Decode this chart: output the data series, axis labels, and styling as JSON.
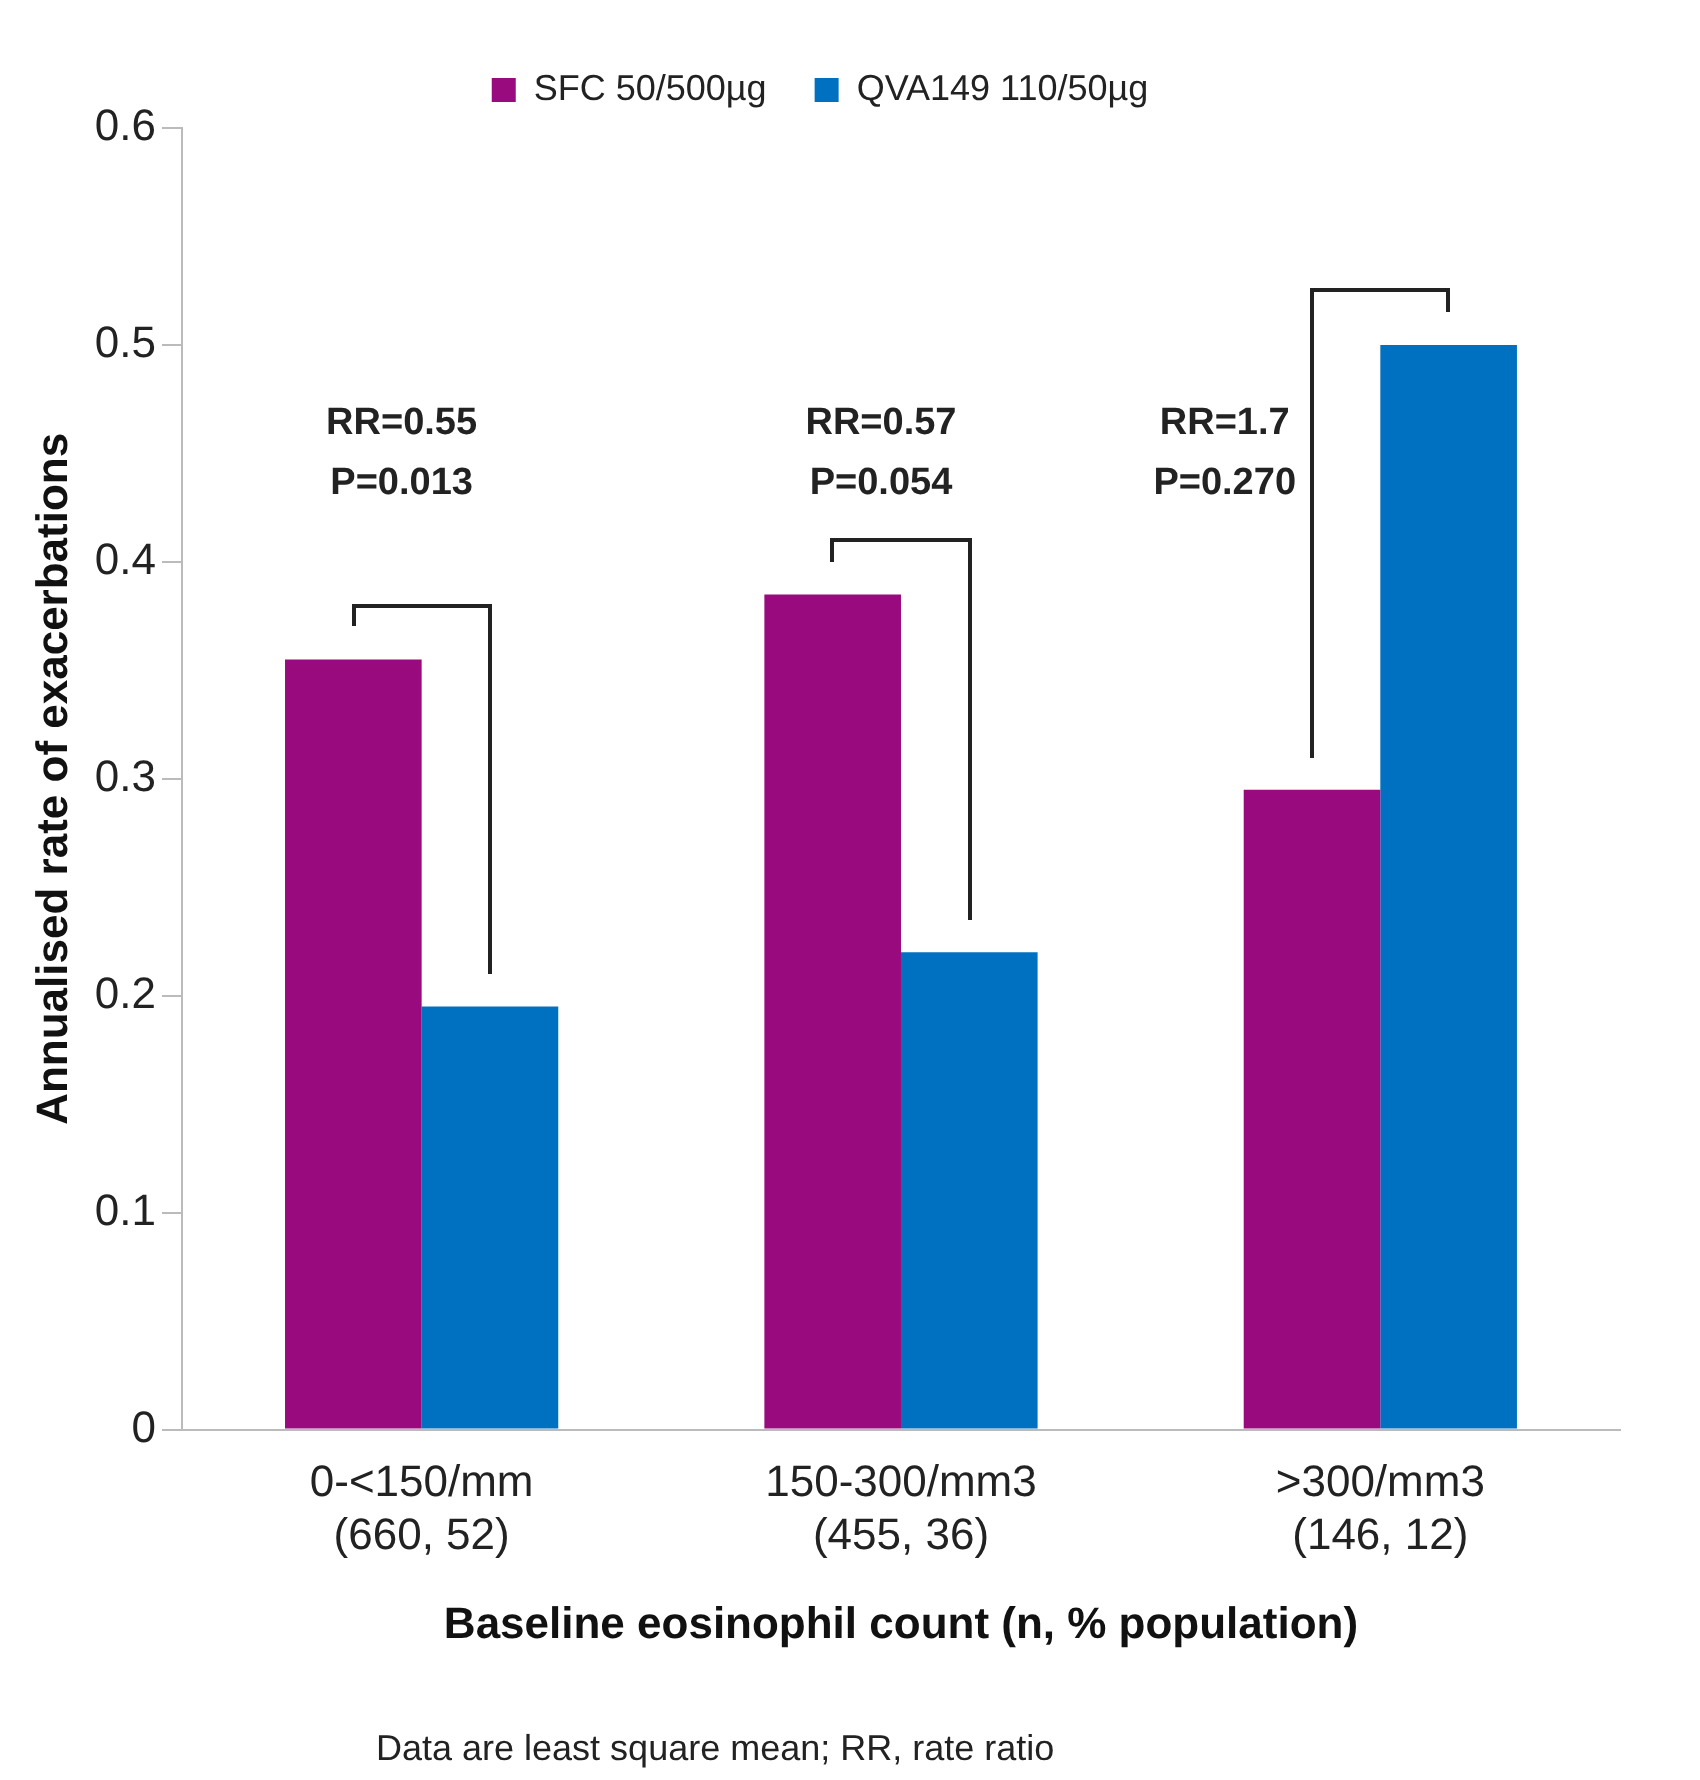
{
  "chart_data": {
    "type": "bar",
    "xlabel": "Baseline eosinophil count (n, % population)",
    "ylabel": "Annualised rate of exacerbations",
    "categories": [
      "0-<150/mm\n(660, 52)",
      "150-300/mm3\n(455, 36)",
      ">300/mm3\n(146, 12)"
    ],
    "series": [
      {
        "name": "SFC 50/500µg",
        "color": "#990a7f",
        "values": [
          0.355,
          0.385,
          0.295
        ]
      },
      {
        "name": "QVA149 110/50µg",
        "color": "#0070c0",
        "values": [
          0.195,
          0.22,
          0.5
        ]
      }
    ],
    "ylim": [
      0,
      0.6
    ],
    "yticks": [
      0,
      0.1,
      0.2,
      0.3,
      0.4,
      0.5,
      0.6
    ],
    "grid": false,
    "legend": "top",
    "annotations": [
      "RR=0.55\nP=0.013",
      "RR=0.57\nP=0.054",
      "RR=1.7\nP=0.270",
      "Data are least square mean; RR, rate ratio"
    ]
  }
}
